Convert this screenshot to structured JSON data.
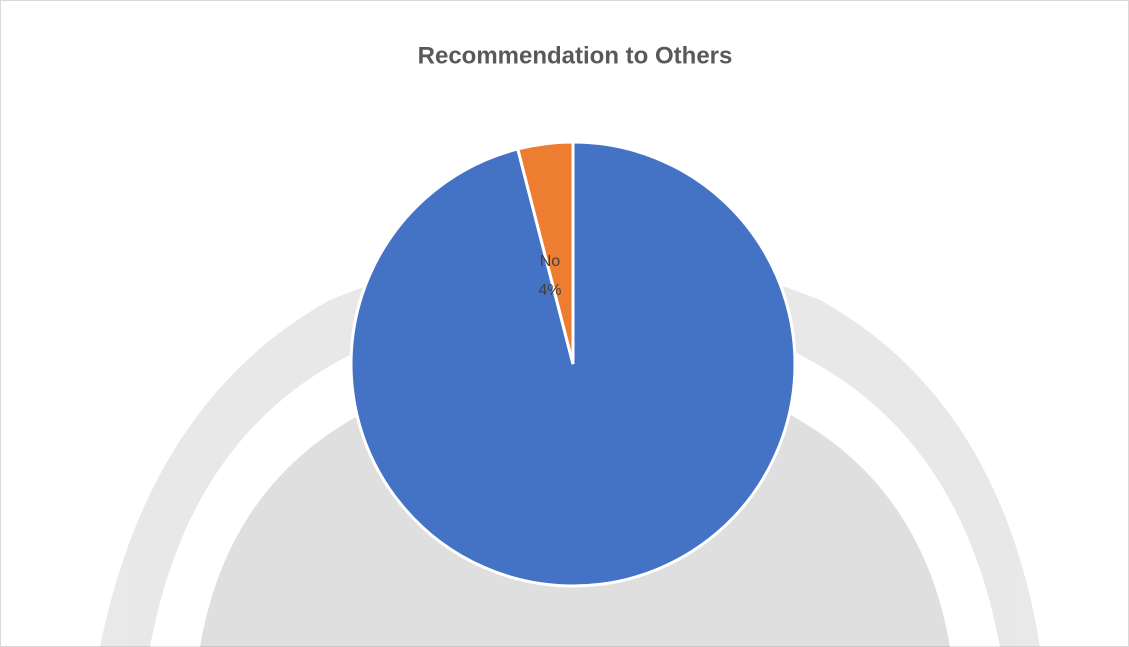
{
  "chart_data": {
    "type": "pie",
    "title": "Recommendation  to Others",
    "categories": [
      null,
      "No"
    ],
    "values": [
      96,
      4
    ],
    "value_labels": [
      null,
      "4%"
    ],
    "colors": [
      "#4472c4",
      "#ed7d31"
    ]
  }
}
